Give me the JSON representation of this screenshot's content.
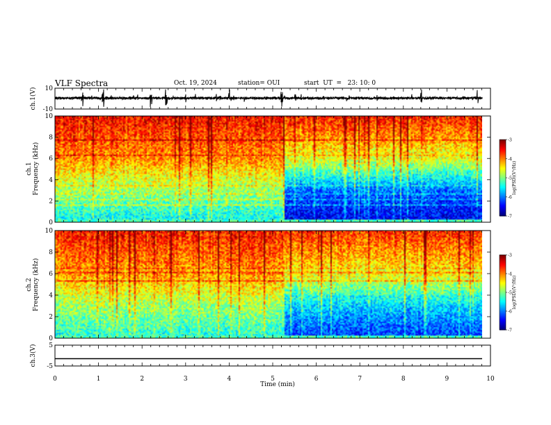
{
  "header": {
    "title": "VLF Spectra",
    "date": "Oct. 19, 2024",
    "station": "station= OUI",
    "start": "start  UT  =   23: 10: 0"
  },
  "chart_data": [
    {
      "type": "line",
      "panel": "ch1-waveform",
      "ylabel": "ch.1(V)",
      "ylim": [
        -10,
        10
      ],
      "yticks": [
        "10",
        "-10"
      ],
      "xlim": [
        0,
        10
      ],
      "baseline": 0.5,
      "spikes_at_min": [
        0.65,
        1.1,
        2.2,
        2.55,
        4.0,
        5.2,
        8.4,
        9.7
      ]
    },
    {
      "type": "heatmap",
      "panel": "ch1-spectrogram",
      "ylabel": [
        "ch.1",
        "Frequency (kHz)"
      ],
      "ylim": [
        0,
        10
      ],
      "yticks": [
        "0",
        "2",
        "4",
        "6",
        "8",
        "10"
      ],
      "xlim": [
        0,
        9.8
      ],
      "colorbar": {
        "label": "log(PSD)(V²/Hz)",
        "ticks": [
          "-3",
          "-4",
          "-5",
          "-6",
          "-7"
        ],
        "range": [
          -7,
          -3
        ]
      },
      "regime_change_min": 5.25,
      "level_before": {
        "low_band": -5.6,
        "mid_band": -5.0,
        "high_band": -3.7
      },
      "level_after": {
        "low_band": -6.7,
        "mid_band": -6.2,
        "high_band": -3.8
      }
    },
    {
      "type": "heatmap",
      "panel": "ch2-spectrogram",
      "ylabel": [
        "ch.2",
        "Frequency (kHz)"
      ],
      "ylim": [
        0,
        10
      ],
      "yticks": [
        "0",
        "2",
        "4",
        "6",
        "8",
        "10"
      ],
      "xlim": [
        0,
        9.8
      ],
      "colorbar": {
        "label": "log(PSD)(V²/Hz)",
        "ticks": [
          "-3",
          "-4",
          "-5",
          "-6",
          "-7"
        ],
        "range": [
          -7,
          -3
        ]
      },
      "regime_change_min": 5.25,
      "level_before": {
        "low_band": -5.5,
        "mid_band": -5.0,
        "high_band": -3.8
      },
      "level_after": {
        "low_band": -6.4,
        "mid_band": -5.8,
        "high_band": -3.9
      }
    },
    {
      "type": "line",
      "panel": "ch3-waveform",
      "ylabel": "ch.3(V)",
      "ylim": [
        -5,
        5
      ],
      "yticks": [
        "5",
        "-5"
      ],
      "xlim": [
        0,
        10
      ],
      "constant_value": -1.5
    }
  ],
  "x_axis": {
    "label": "Time  (min)",
    "ticks": [
      "0",
      "1",
      "2",
      "3",
      "4",
      "5",
      "6",
      "7",
      "8",
      "9",
      "10"
    ],
    "range": [
      0,
      10
    ]
  },
  "colors": {
    "scale": [
      "#000080",
      "#0000ff",
      "#0080ff",
      "#00ffff",
      "#80ff80",
      "#ffff00",
      "#ff8000",
      "#ff0000",
      "#800000"
    ],
    "trace": "#000000"
  }
}
